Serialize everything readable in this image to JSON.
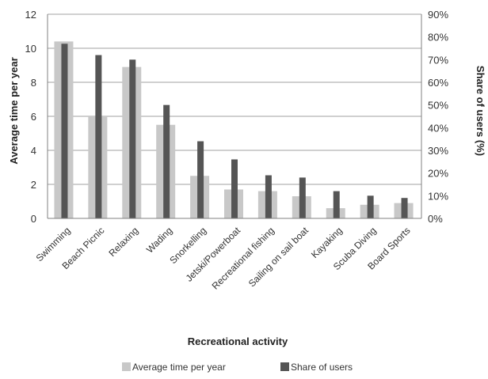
{
  "chart_data": {
    "type": "bar",
    "xlabel": "Recreational activity",
    "ylabel": "Average time per year",
    "y2label": "Share of users (%)",
    "ylim": [
      0,
      12
    ],
    "y2lim": [
      0,
      90
    ],
    "yticks": [
      "0",
      "2",
      "4",
      "6",
      "8",
      "10",
      "12"
    ],
    "y2ticks": [
      "0%",
      "10%",
      "20%",
      "30%",
      "40%",
      "50%",
      "60%",
      "70%",
      "80%",
      "90%"
    ],
    "grid": true,
    "legend_position": "bottom",
    "categories": [
      "Swimming",
      "Beach Picnic",
      "Relaxing",
      "Wading",
      "Snorkelling",
      "Jetski/Powerboat",
      "Recreational fishing",
      "Sailing on sail boat",
      "Kayaking",
      "Scuba Diving",
      "Board Sports"
    ],
    "series": [
      {
        "name": "Average time per year",
        "axis": "left",
        "color": "#c8c8c8",
        "values": [
          10.4,
          6.0,
          8.9,
          5.5,
          2.5,
          1.7,
          1.6,
          1.3,
          0.6,
          0.8,
          0.9
        ]
      },
      {
        "name": "Share of users",
        "axis": "right",
        "color": "#555555",
        "values": [
          77,
          72,
          70,
          50,
          34,
          26,
          19,
          18,
          12,
          10,
          9
        ]
      }
    ]
  }
}
